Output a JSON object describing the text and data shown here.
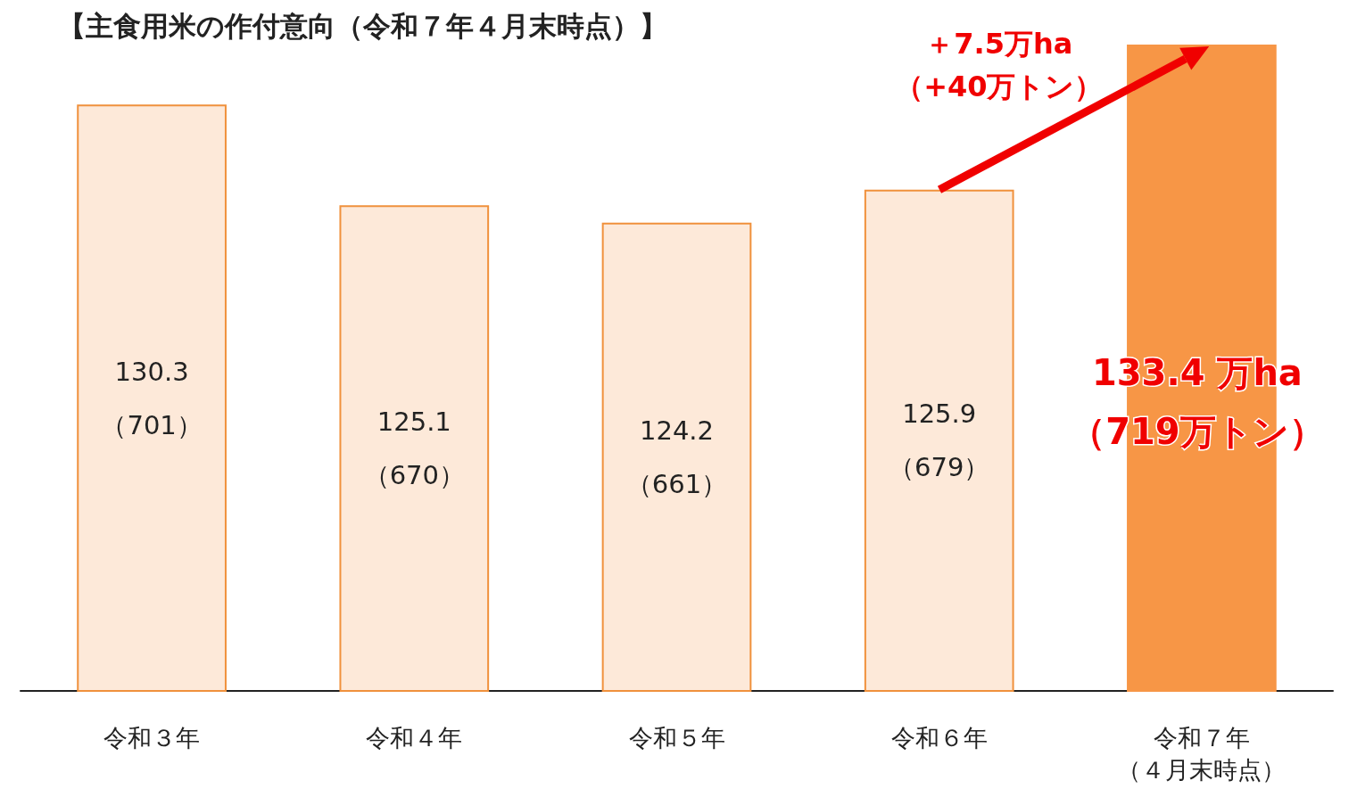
{
  "chart_data": {
    "type": "bar",
    "title": "【主食用米の作付意向（令和７年４月末時点）】",
    "categories": [
      "令和３年",
      "令和４年",
      "令和５年",
      "令和６年",
      "令和７年（４月末時点）"
    ],
    "values": [
      130.3,
      125.1,
      124.2,
      125.9,
      133.4
    ],
    "colors": [
      "#fde9d9",
      "#fde9d9",
      "#fde9d9",
      "#fde9d9",
      "#f79646"
    ],
    "value_labels": [
      "130.3\n（701）",
      "125.1\n（670）",
      "124.2\n（661）",
      "125.9\n（679）",
      null
    ],
    "ylim": [
      100,
      133.4
    ],
    "tick_labels": "x",
    "annotations": [
      "＋7.5万ha\n（+40万トン）",
      "133.4 万ha\n（719万トン）"
    ]
  }
}
